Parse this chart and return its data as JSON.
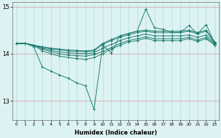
{
  "xlabel": "Humidex (Indice chaleur)",
  "x": [
    0,
    1,
    2,
    3,
    4,
    5,
    6,
    7,
    8,
    9,
    10,
    11,
    12,
    13,
    14,
    15,
    16,
    17,
    18,
    19,
    20,
    21,
    22,
    23
  ],
  "line_upper": [
    14.22,
    14.22,
    14.18,
    14.15,
    14.12,
    14.1,
    14.08,
    14.07,
    14.06,
    14.08,
    14.22,
    14.3,
    14.38,
    14.43,
    14.48,
    14.5,
    14.48,
    14.48,
    14.48,
    14.48,
    14.5,
    14.45,
    14.5,
    14.25
  ],
  "line_upper2": [
    14.22,
    14.22,
    14.18,
    14.14,
    14.1,
    14.08,
    14.06,
    14.05,
    14.04,
    14.06,
    14.2,
    14.28,
    14.35,
    14.4,
    14.45,
    14.48,
    14.45,
    14.45,
    14.45,
    14.45,
    14.48,
    14.42,
    14.48,
    14.23
  ],
  "line_mid": [
    14.22,
    14.22,
    14.18,
    14.12,
    14.07,
    14.04,
    14.02,
    14.01,
    14.0,
    14.02,
    14.12,
    14.2,
    14.28,
    14.34,
    14.38,
    14.42,
    14.38,
    14.38,
    14.38,
    14.38,
    14.4,
    14.35,
    14.4,
    14.22
  ],
  "line_lower2": [
    14.22,
    14.22,
    14.18,
    14.1,
    14.04,
    14.0,
    13.97,
    13.96,
    13.95,
    13.98,
    14.05,
    14.13,
    14.22,
    14.28,
    14.32,
    14.36,
    14.32,
    14.32,
    14.32,
    14.32,
    14.35,
    14.29,
    14.35,
    14.2
  ],
  "line_lower": [
    14.22,
    14.22,
    14.18,
    14.06,
    14.0,
    13.95,
    13.92,
    13.9,
    13.88,
    13.92,
    14.0,
    14.1,
    14.18,
    14.25,
    14.28,
    14.33,
    14.28,
    14.28,
    14.28,
    14.28,
    14.32,
    14.26,
    14.32,
    14.18
  ],
  "line_actual": [
    14.22,
    14.22,
    14.15,
    13.72,
    13.63,
    13.55,
    13.48,
    13.38,
    13.32,
    12.82,
    14.18,
    14.02,
    14.38,
    14.43,
    14.48,
    14.95,
    14.55,
    14.52,
    14.45,
    14.45,
    14.6,
    14.42,
    14.62,
    14.22
  ],
  "ylim": [
    12.6,
    15.1
  ],
  "yticks": [
    13,
    14,
    15
  ],
  "color_main": "#1a7a6e",
  "bg_color": "#ddf2f2",
  "grid_color_v": "#aadddd",
  "grid_color_h": "#cc9999"
}
